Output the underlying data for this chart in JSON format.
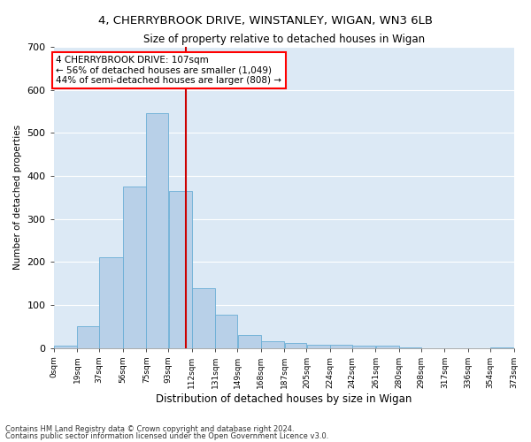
{
  "title": "4, CHERRYBROOK DRIVE, WINSTANLEY, WIGAN, WN3 6LB",
  "subtitle": "Size of property relative to detached houses in Wigan",
  "xlabel": "Distribution of detached houses by size in Wigan",
  "ylabel": "Number of detached properties",
  "footnote1": "Contains HM Land Registry data © Crown copyright and database right 2024.",
  "footnote2": "Contains public sector information licensed under the Open Government Licence v3.0.",
  "annotation_line1": "4 CHERRYBROOK DRIVE: 107sqm",
  "annotation_line2": "← 56% of detached houses are smaller (1,049)",
  "annotation_line3": "44% of semi-detached houses are larger (808) →",
  "bar_color": "#b8d0e8",
  "bar_edge_color": "#6aaed6",
  "line_color": "#cc0000",
  "background_color": "#dce9f5",
  "bin_edges": [
    0,
    19,
    37,
    56,
    75,
    93,
    112,
    131,
    149,
    168,
    187,
    205,
    224,
    242,
    261,
    280,
    298,
    317,
    336,
    354,
    373
  ],
  "bar_heights": [
    5,
    50,
    210,
    375,
    545,
    365,
    138,
    77,
    30,
    15,
    12,
    8,
    7,
    6,
    5,
    2,
    0,
    0,
    0,
    1
  ],
  "property_size": 107,
  "ylim": [
    0,
    700
  ],
  "yticks": [
    0,
    100,
    200,
    300,
    400,
    500,
    600,
    700
  ],
  "tick_labels": [
    "0sqm",
    "19sqm",
    "37sqm",
    "56sqm",
    "75sqm",
    "93sqm",
    "112sqm",
    "131sqm",
    "149sqm",
    "168sqm",
    "187sqm",
    "205sqm",
    "224sqm",
    "242sqm",
    "261sqm",
    "280sqm",
    "298sqm",
    "317sqm",
    "336sqm",
    "354sqm",
    "373sqm"
  ]
}
